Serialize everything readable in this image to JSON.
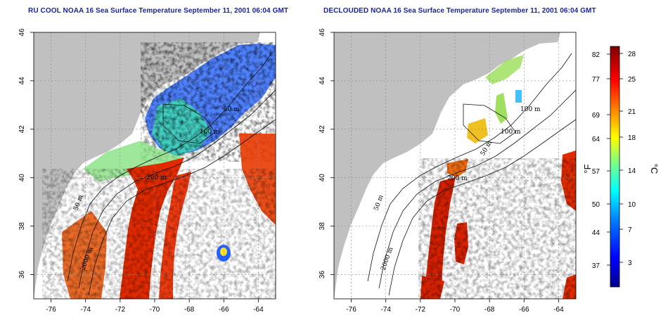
{
  "left_panel": {
    "title": "RU COOL NOAA 16 Sea Surface Temperature September 11, 2001 06:04 GMT",
    "contour_labels": [
      "50 m",
      "100 m",
      "200 m",
      "50 m",
      "2000 m"
    ]
  },
  "right_panel": {
    "title": "DECLOUDED NOAA 16 Sea Surface Temperature September 11, 2001 06:04 GMT",
    "contour_labels": [
      "100 m",
      "100 m",
      "50 m",
      "200 m",
      "50 m",
      "2000 m"
    ]
  },
  "axes": {
    "x_ticks": [
      "-76",
      "-74",
      "-72",
      "-70",
      "-68",
      "-66",
      "-64"
    ],
    "y_ticks": [
      "36",
      "38",
      "40",
      "42",
      "44",
      "46"
    ],
    "lon_range": [
      -77,
      -63
    ],
    "lat_range": [
      35,
      46
    ],
    "grid": "dotted"
  },
  "colorbar": {
    "fahrenheit_ticks": [
      "82",
      "77",
      "69",
      "64",
      "57",
      "50",
      "44",
      "37"
    ],
    "celsius_ticks": [
      "28",
      "25",
      "21",
      "18",
      "14",
      "10",
      "7",
      "3"
    ],
    "fahrenheit_label": "°F",
    "celsius_label": "°C",
    "gradient_colors": [
      "#00008f",
      "#0000ff",
      "#0080ff",
      "#00ffff",
      "#80ff80",
      "#ffff00",
      "#ff8000",
      "#ff0000",
      "#800000"
    ]
  },
  "colors": {
    "title": "#1c22a8",
    "land": "#c0c0c0",
    "cloud_white": "#ffffff",
    "warm_stream": "#d02000"
  }
}
